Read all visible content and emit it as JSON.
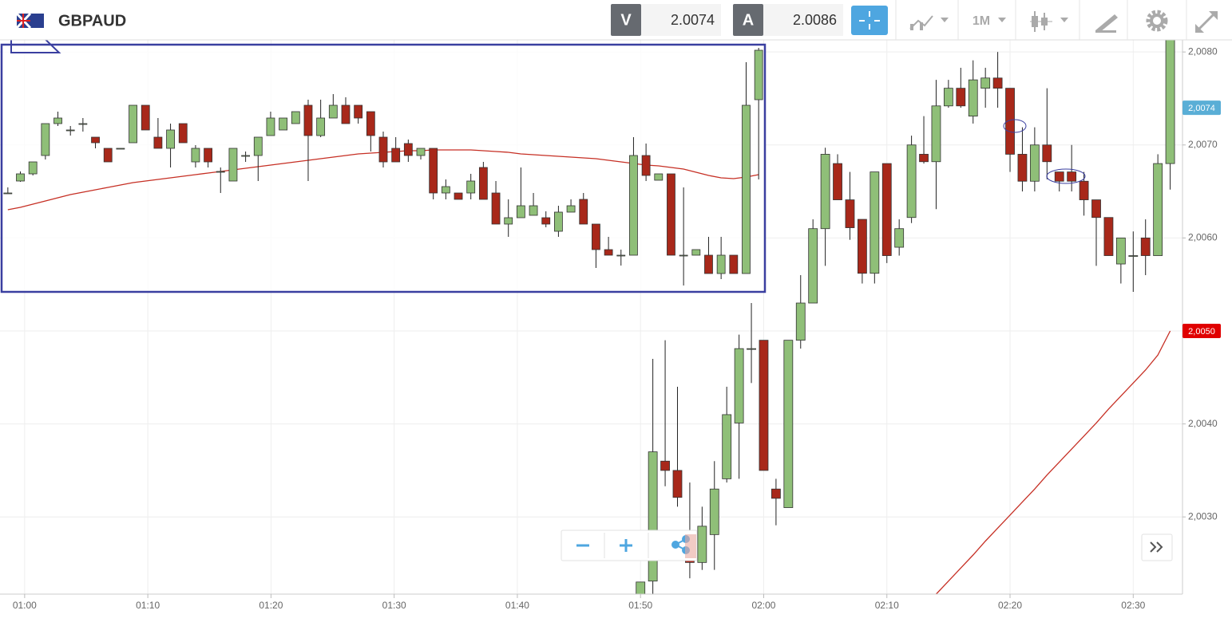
{
  "toolbar": {
    "symbol": "GBPAUD",
    "bid_label": "V",
    "bid": 2.0074,
    "ask_label": "A",
    "ask": 2.0086,
    "timeframe": "1M"
  },
  "chart_data": [
    {
      "type": "candlestick",
      "x": [
        "01:50",
        "01:51",
        "01:52",
        "01:53",
        "01:54",
        "01:55",
        "01:56",
        "01:57",
        "01:58",
        "01:59",
        "02:00",
        "02:01",
        "02:02",
        "02:03",
        "02:04",
        "02:05",
        "02:06",
        "02:07",
        "02:08",
        "02:09",
        "02:10",
        "02:11",
        "02:12",
        "02:13",
        "02:14",
        "02:15",
        "02:16",
        "02:17",
        "02:18",
        "02:19",
        "02:20",
        "02:21",
        "02:22",
        "02:23",
        "02:24",
        "02:25",
        "02:26",
        "02:27",
        "02:28",
        "02:29",
        "02:30",
        "02:31",
        "02:32",
        "02:33"
      ],
      "open": [
        2.00217,
        2.00231,
        2.0036,
        2.0035,
        2.00277,
        2.00251,
        2.00281,
        2.00341,
        2.00401,
        2.00481,
        2.0049,
        2.0033,
        2.0031,
        2.0049,
        2.0053,
        2.0061,
        2.0068,
        2.00641,
        2.0062,
        2.00562,
        2.0068,
        2.0059,
        2.00622,
        2.0069,
        2.00682,
        2.00742,
        2.00761,
        2.00731,
        2.00761,
        2.00772,
        2.00761,
        2.0069,
        2.00661,
        2.007,
        2.00671,
        2.00671,
        2.00661,
        2.00641,
        2.00622,
        2.00572,
        2.00581,
        2.006,
        2.00581,
        2.0068
      ],
      "high": [
        2.0023,
        2.0047,
        2.0049,
        2.0044,
        2.00337,
        2.00311,
        2.0036,
        2.0044,
        2.00496,
        2.0053,
        2.0049,
        2.00341,
        2.0049,
        2.0056,
        2.0062,
        2.00697,
        2.0069,
        2.00671,
        2.0062,
        2.00671,
        2.0068,
        2.0062,
        2.0071,
        2.00731,
        2.0077,
        2.0077,
        2.00783,
        2.00791,
        2.00783,
        2.008,
        2.00761,
        2.00719,
        2.00719,
        2.00761,
        2.00671,
        2.007,
        2.00671,
        2.00641,
        2.00622,
        2.006,
        2.00607,
        2.0062,
        2.0069,
        2.00813
      ],
      "low": [
        2.00217,
        2.00217,
        2.00333,
        2.00311,
        2.00234,
        2.00243,
        2.00243,
        2.00337,
        2.00341,
        2.00444,
        2.0035,
        2.00291,
        2.0031,
        2.00481,
        2.0053,
        2.0057,
        2.00641,
        2.00598,
        2.00551,
        2.00551,
        2.00573,
        2.00581,
        2.00616,
        2.0068,
        2.00631,
        2.0074,
        2.0074,
        2.00723,
        2.0074,
        2.0074,
        2.00671,
        2.0065,
        2.0065,
        2.00663,
        2.0065,
        2.0065,
        2.00624,
        2.0057,
        2.00581,
        2.00551,
        2.00542,
        2.0056,
        2.00581,
        2.00652
      ],
      "close": [
        2.0023,
        2.0037,
        2.0035,
        2.00321,
        2.00251,
        2.0029,
        2.0033,
        2.0041,
        2.00481,
        2.00481,
        2.0035,
        2.0032,
        2.0049,
        2.0053,
        2.0061,
        2.0069,
        2.00641,
        2.00611,
        2.00562,
        2.00671,
        2.00581,
        2.0061,
        2.007,
        2.00682,
        2.00742,
        2.00761,
        2.00742,
        2.0077,
        2.00772,
        2.00761,
        2.0069,
        2.00661,
        2.007,
        2.00682,
        2.00661,
        2.00661,
        2.00641,
        2.00622,
        2.00581,
        2.006,
        2.00581,
        2.00581,
        2.0068,
        2.00813
      ],
      "up_color": "#8fbf78",
      "down_color": "#a8281a",
      "moving_average": {
        "color": "#c62f24",
        "values": [
          null,
          null,
          null,
          null,
          null,
          null,
          null,
          null,
          null,
          null,
          null,
          null,
          null,
          null,
          null,
          null,
          null,
          null,
          null,
          null,
          null,
          null,
          null,
          null,
          2.00217,
          2.00231,
          2.00245,
          2.00259,
          2.00274,
          2.00288,
          2.00302,
          2.00316,
          2.0033,
          2.00345,
          2.00359,
          2.00373,
          2.00387,
          2.00401,
          2.00416,
          2.0043,
          2.00444,
          2.00458,
          2.00474,
          2.005
        ]
      },
      "xlim": [
        "00:58",
        "02:34"
      ],
      "xticks": [
        "01:00",
        "01:10",
        "01:20",
        "01:30",
        "01:40",
        "01:50",
        "02:00",
        "02:10",
        "02:20",
        "02:30"
      ],
      "ylim": [
        2.00217,
        2.00813
      ],
      "yticks": [
        {
          "value": 2.003,
          "label": "2,0030"
        },
        {
          "value": 2.004,
          "label": "2,0040"
        },
        {
          "value": 2.005,
          "label": "2,0050"
        },
        {
          "value": 2.006,
          "label": "2,0060"
        },
        {
          "value": 2.007,
          "label": "2,0070"
        },
        {
          "value": 2.008,
          "label": "2,0080"
        }
      ],
      "grid": true,
      "price_tags": [
        {
          "value": 2.0074,
          "label": "2,0074",
          "color": "#5aaed6"
        },
        {
          "value": 2.005,
          "label": "2,0050",
          "color": "#e00000"
        }
      ]
    },
    {
      "type": "candlestick",
      "open": [
        2.00618,
        2.00633,
        2.00642,
        2.00665,
        2.00705,
        2.00697,
        2.00705,
        2.00688,
        2.00674,
        2.00674,
        2.00681,
        2.00728,
        2.00688,
        2.00674,
        2.00705,
        2.00657,
        2.00674,
        2.00645,
        2.00633,
        2.00665,
        2.00665,
        2.0069,
        2.00697,
        2.00705,
        2.00728,
        2.0069,
        2.00712,
        2.00728,
        2.00728,
        2.0072,
        2.00688,
        2.00674,
        2.0068,
        2.00665,
        2.00674,
        2.00618,
        2.00618,
        2.00618,
        2.0065,
        2.00618,
        2.00579,
        2.00587,
        2.0059,
        2.00587,
        2.0057,
        2.00594,
        2.0061,
        2.00579,
        2.00547,
        2.0054,
        2.0054,
        2.00665,
        2.00634,
        2.00642,
        2.0054,
        2.0054,
        2.0054,
        2.00517,
        2.0054,
        2.00517,
        2.00735
      ],
      "high": [
        2.00625,
        2.00645,
        2.00657,
        2.00705,
        2.0072,
        2.00702,
        2.00712,
        2.00688,
        2.00674,
        2.00674,
        2.00728,
        2.00728,
        2.00712,
        2.00705,
        2.00705,
        2.00678,
        2.00674,
        2.0065,
        2.00674,
        2.0067,
        2.00688,
        2.0072,
        2.00712,
        2.0072,
        2.00735,
        2.00735,
        2.00742,
        2.00738,
        2.00728,
        2.0072,
        2.00695,
        2.00688,
        2.00685,
        2.00674,
        2.00674,
        2.00635,
        2.00618,
        2.00642,
        2.00657,
        2.00633,
        2.0061,
        2.0065,
        2.00618,
        2.00595,
        2.00602,
        2.0061,
        2.00618,
        2.00579,
        2.00563,
        2.00547,
        2.00688,
        2.0068,
        2.00642,
        2.00642,
        2.00625,
        2.00547,
        2.00563,
        2.00563,
        2.0054,
        2.00782,
        2.008
      ],
      "low": [
        2.00618,
        2.00632,
        2.0064,
        2.0066,
        2.00702,
        2.0069,
        2.00695,
        2.00674,
        2.00657,
        2.00674,
        2.00681,
        2.00697,
        2.00674,
        2.0065,
        2.00681,
        2.0065,
        2.0065,
        2.00618,
        2.00633,
        2.00657,
        2.00633,
        2.0069,
        2.00697,
        2.00705,
        2.00633,
        2.00688,
        2.00712,
        2.00705,
        2.00705,
        2.0067,
        2.0065,
        2.00657,
        2.00657,
        2.0066,
        2.0061,
        2.0061,
        2.0061,
        2.0061,
        2.0061,
        2.00579,
        2.00563,
        2.00587,
        2.0059,
        2.00575,
        2.00563,
        2.00594,
        2.00579,
        2.00524,
        2.0054,
        2.00527,
        2.0054,
        2.00633,
        2.00634,
        2.0054,
        2.00502,
        2.0054,
        2.00517,
        2.0051,
        2.00517,
        2.00517,
        2.00635
      ],
      "close": [
        2.00618,
        2.00642,
        2.00657,
        2.00705,
        2.00712,
        2.00697,
        2.00705,
        2.00681,
        2.00657,
        2.00674,
        2.00728,
        2.00697,
        2.00674,
        2.00697,
        2.00681,
        2.00674,
        2.00657,
        2.00645,
        2.00674,
        2.00665,
        2.00688,
        2.00712,
        2.00712,
        2.0072,
        2.0069,
        2.00712,
        2.00728,
        2.00705,
        2.00712,
        2.0069,
        2.00657,
        2.00657,
        2.00665,
        2.00674,
        2.00618,
        2.00626,
        2.0061,
        2.00633,
        2.0061,
        2.00579,
        2.00587,
        2.00602,
        2.00602,
        2.00579,
        2.00594,
        2.00602,
        2.00579,
        2.00547,
        2.0054,
        2.0054,
        2.00665,
        2.0064,
        2.00642,
        2.0054,
        2.0054,
        2.00547,
        2.00517,
        2.0054,
        2.00517,
        2.00728,
        2.00797
      ],
      "up_color": "#8fbf78",
      "down_color": "#a8281a",
      "moving_average": {
        "color": "#c62f24",
        "values": [
          2.00597,
          2.006,
          2.00604,
          2.00608,
          2.00612,
          2.00616,
          2.00619,
          2.00622,
          2.00625,
          2.00628,
          2.00631,
          2.00633,
          2.00635,
          2.00637,
          2.00639,
          2.00641,
          2.00643,
          2.00645,
          2.00647,
          2.00649,
          2.00651,
          2.00653,
          2.00655,
          2.00657,
          2.00659,
          2.00661,
          2.00663,
          2.00665,
          2.00667,
          2.00668,
          2.00669,
          2.0067,
          2.00671,
          2.00671,
          2.00672,
          2.00672,
          2.00672,
          2.00672,
          2.00671,
          2.0067,
          2.00669,
          2.00667,
          2.00666,
          2.00665,
          2.00664,
          2.00663,
          2.00662,
          2.00661,
          2.00659,
          2.00657,
          2.00655,
          2.00653,
          2.00652,
          2.0065,
          2.00648,
          2.00644,
          2.0064,
          2.00637,
          2.00636,
          2.00638,
          2.00641
        ]
      },
      "ylim": [
        2.00494,
        2.00804
      ]
    }
  ]
}
